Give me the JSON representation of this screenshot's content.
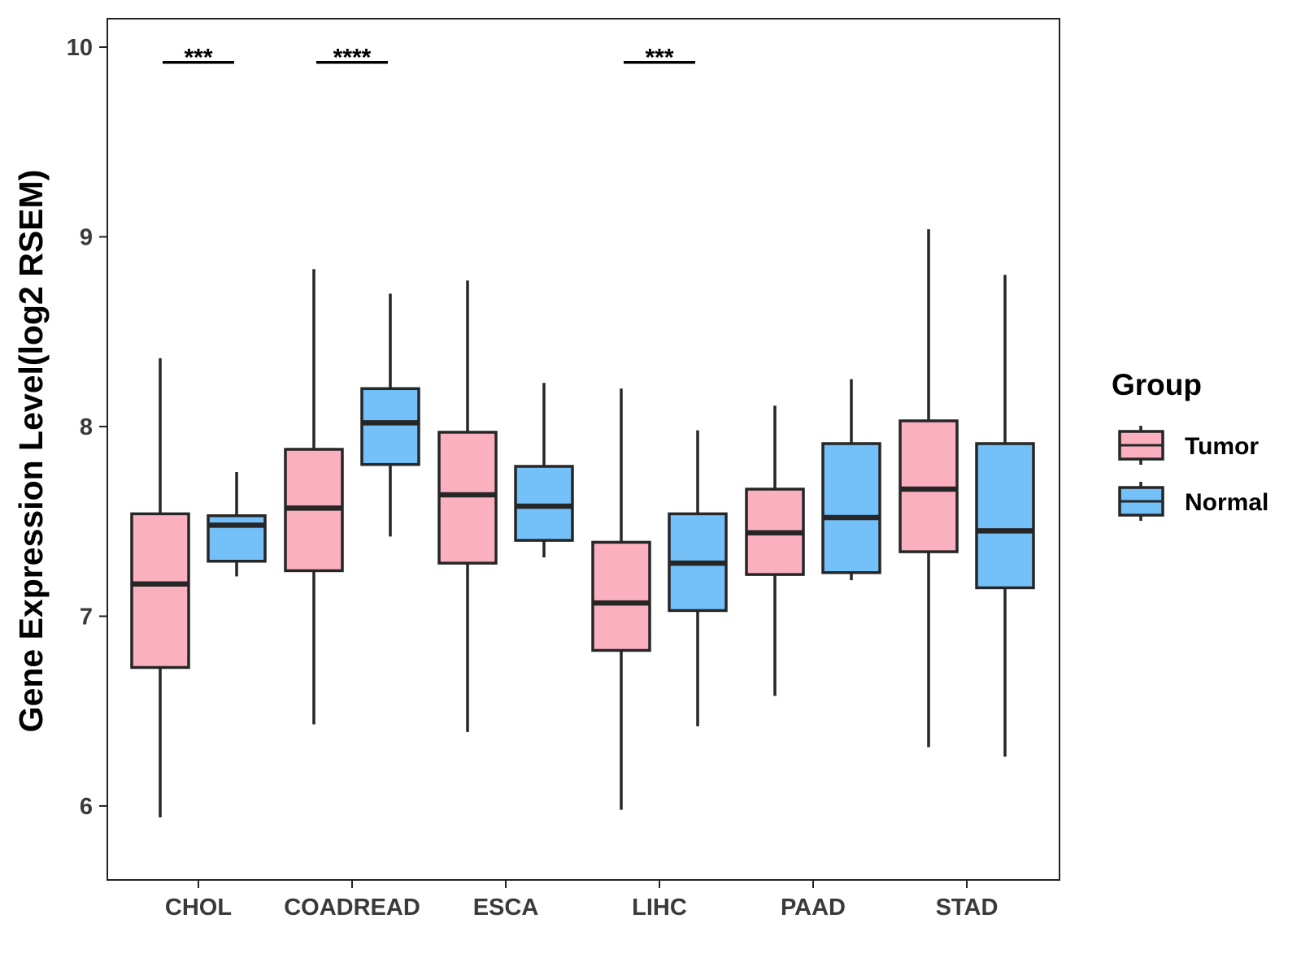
{
  "chart_data": {
    "type": "boxplot",
    "title": "",
    "xlabel": "",
    "ylabel": "Gene Expression Level(log2 RSEM)",
    "ylim": [
      5.61,
      10.15
    ],
    "yticks": [
      6,
      7,
      8,
      9,
      10
    ],
    "yticklabels": [
      "6",
      "7",
      "8",
      "9",
      "10"
    ],
    "categories": [
      "CHOL",
      "COADREAD",
      "ESCA",
      "LIHC",
      "PAAD",
      "STAD"
    ],
    "legend": {
      "title": "Group",
      "position": "right",
      "entries": [
        {
          "name": "Tumor",
          "color": "#fbb0c0"
        },
        {
          "name": "Normal",
          "color": "#74c0f8"
        }
      ]
    },
    "series": [
      {
        "name": "Tumor",
        "color": "#fbb0c0",
        "boxes": [
          {
            "category": "CHOL",
            "min": 5.94,
            "q1": 6.73,
            "median": 7.17,
            "q3": 7.54,
            "max": 8.36
          },
          {
            "category": "COADREAD",
            "min": 6.43,
            "q1": 7.24,
            "median": 7.57,
            "q3": 7.88,
            "max": 8.83
          },
          {
            "category": "ESCA",
            "min": 6.39,
            "q1": 7.28,
            "median": 7.64,
            "q3": 7.97,
            "max": 8.77
          },
          {
            "category": "LIHC",
            "min": 5.98,
            "q1": 6.82,
            "median": 7.07,
            "q3": 7.39,
            "max": 8.2
          },
          {
            "category": "PAAD",
            "min": 6.58,
            "q1": 7.22,
            "median": 7.44,
            "q3": 7.67,
            "max": 8.11
          },
          {
            "category": "STAD",
            "min": 6.31,
            "q1": 7.34,
            "median": 7.67,
            "q3": 8.03,
            "max": 9.04
          }
        ]
      },
      {
        "name": "Normal",
        "color": "#74c0f8",
        "boxes": [
          {
            "category": "CHOL",
            "min": 7.21,
            "q1": 7.29,
            "median": 7.48,
            "q3": 7.53,
            "max": 7.76
          },
          {
            "category": "COADREAD",
            "min": 7.42,
            "q1": 7.8,
            "median": 8.02,
            "q3": 8.2,
            "max": 8.7
          },
          {
            "category": "ESCA",
            "min": 7.31,
            "q1": 7.4,
            "median": 7.58,
            "q3": 7.79,
            "max": 8.23
          },
          {
            "category": "LIHC",
            "min": 6.42,
            "q1": 7.03,
            "median": 7.28,
            "q3": 7.54,
            "max": 7.98
          },
          {
            "category": "PAAD",
            "min": 7.19,
            "q1": 7.23,
            "median": 7.52,
            "q3": 7.91,
            "max": 8.25
          },
          {
            "category": "STAD",
            "min": 6.26,
            "q1": 7.15,
            "median": 7.45,
            "q3": 7.91,
            "max": 8.8
          }
        ]
      }
    ],
    "significance": [
      {
        "category": "CHOL",
        "label": "***",
        "y": 9.92
      },
      {
        "category": "COADREAD",
        "label": "****",
        "y": 9.92
      },
      {
        "category": "LIHC",
        "label": "***",
        "y": 9.92
      }
    ]
  }
}
